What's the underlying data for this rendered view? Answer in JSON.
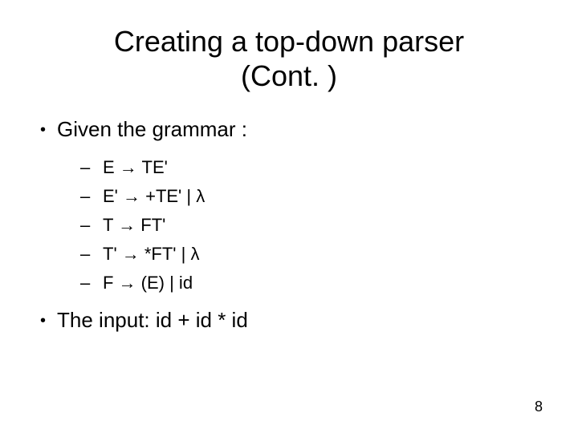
{
  "title": "Creating a top-down parser\n(Cont. )",
  "bullets": [
    {
      "text": "Given the grammar :",
      "sub_items": [
        "E → TE'",
        "E' → +TE' | λ",
        "T → FT'",
        "T' → *FT' | λ",
        "F → (E) | id"
      ]
    },
    {
      "text": "The input: id + id * id",
      "sub_items": []
    }
  ],
  "page_number": "8",
  "colors": {
    "background": "#ffffff",
    "text": "#000000"
  },
  "fonts": {
    "title_size": 36,
    "bullet_size": 26,
    "sub_size": 22,
    "page_num_size": 18
  }
}
